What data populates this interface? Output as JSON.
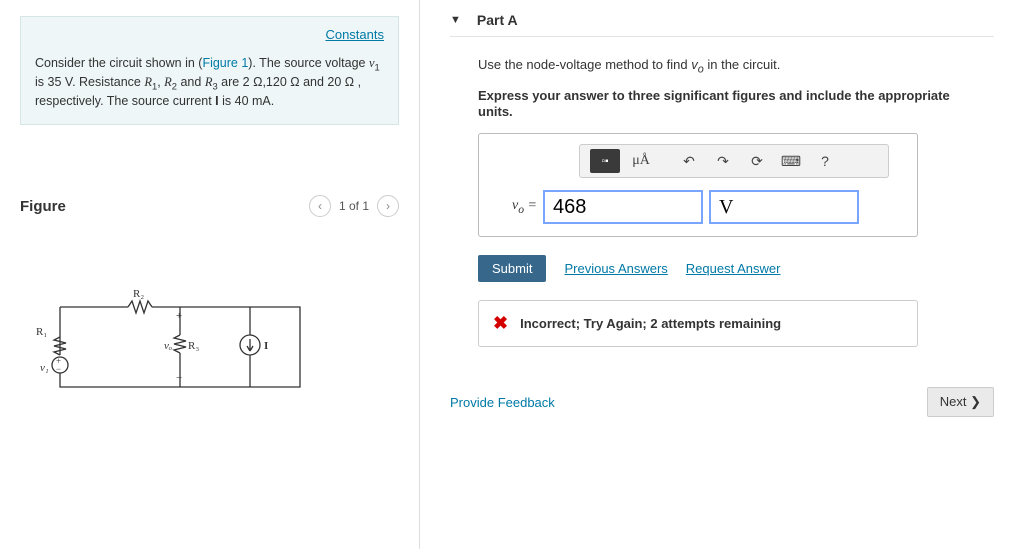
{
  "left": {
    "constants_link": "Constants",
    "problem_html": "Consider the circuit shown in (<span class='link'>Figure 1</span>). The source voltage <i>v</i><span class='sub'>1</span> is 35 V. Resistance <i>R</i><span class='sub'>1</span>, <i>R</i><span class='sub'>2</span> and <i>R</i><span class='sub'>3</span> are 2 Ω,120 Ω and 20 Ω , respectively. The source current <b>I</b> is 40 mA.",
    "figure_label": "Figure",
    "figure_counter": "1 of 1",
    "circuit": {
      "R1": "R₁",
      "R2": "R₂",
      "R3": "R₃",
      "v1": "v₁",
      "vo": "vₒ",
      "I": "I",
      "plus": "+",
      "minus": "−"
    }
  },
  "right": {
    "part_label": "Part A",
    "instruction_html": "Use the node-voltage method to find <i>v<sub>o</sub></i> in the circuit.",
    "instruction_bold": "Express your answer to three significant figures and include the appropriate units.",
    "toolbar": {
      "templates": "▫▪",
      "mu_a": "μÅ",
      "undo": "↶",
      "redo": "↷",
      "reset": "⟳",
      "keyboard": "⌨",
      "help": "?"
    },
    "vo_label_html": "<i>v<sub>o</sub></i> =",
    "value_entered": "468",
    "unit_entered": "V",
    "submit_label": "Submit",
    "prev_answers_label": "Previous Answers",
    "request_answer_label": "Request Answer",
    "feedback_text": "Incorrect; Try Again; 2 attempts remaining",
    "provide_feedback": "Provide Feedback",
    "next_label": "Next ❯"
  }
}
